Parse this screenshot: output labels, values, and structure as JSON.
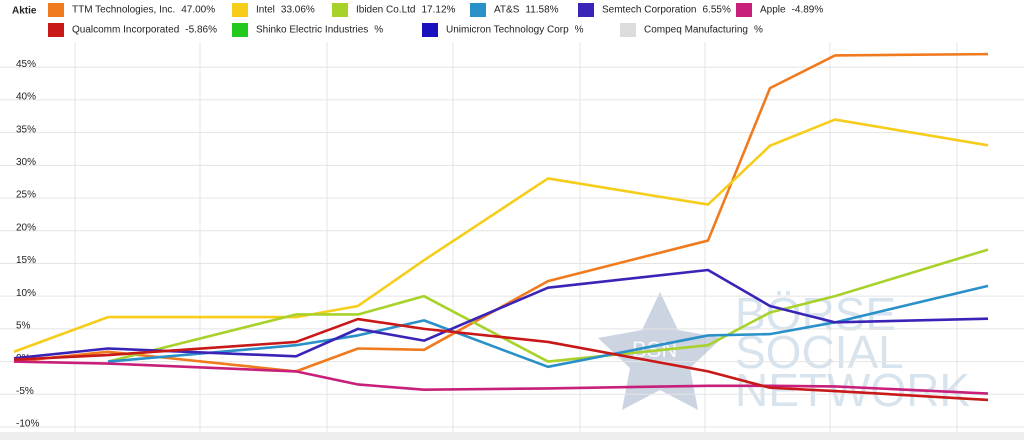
{
  "chart_data": {
    "type": "line",
    "legend_title": "Aktie",
    "watermark": {
      "badge": "BSN",
      "lines": [
        "BÖRSE",
        "SOCIAL",
        "NETWORK"
      ]
    },
    "categories": [
      null,
      null,
      null,
      null,
      null,
      null,
      null,
      null,
      null,
      null
    ],
    "ylim": [
      -10,
      50
    ],
    "yticks": [
      {
        "value": -10,
        "label": "-10%"
      },
      {
        "value": -5,
        "label": "-5%"
      },
      {
        "value": 0,
        "label": "0%"
      },
      {
        "value": 5,
        "label": "5%"
      },
      {
        "value": 10,
        "label": "10%"
      },
      {
        "value": 15,
        "label": "15%"
      },
      {
        "value": 20,
        "label": "20%"
      },
      {
        "value": 25,
        "label": "25%"
      },
      {
        "value": 30,
        "label": "30%"
      },
      {
        "value": 35,
        "label": "35%"
      },
      {
        "value": 40,
        "label": "40%"
      },
      {
        "value": 45,
        "label": "45%"
      }
    ],
    "grid": true,
    "series": [
      {
        "name": "TTM Technologies, Inc.",
        "legend_label": "47.00%",
        "color": "#f07a1e",
        "values": [
          0,
          1.5,
          -1.5,
          2,
          1.8,
          12.3,
          18.5,
          41.8,
          46.8,
          47.0
        ]
      },
      {
        "name": "Intel",
        "legend_label": "33.06%",
        "color": "#f6cd1a",
        "values": [
          1.5,
          6.8,
          6.8,
          8.5,
          15.5,
          28,
          24,
          33,
          37,
          33.06
        ]
      },
      {
        "name": "Ibiden Co.Ltd",
        "legend_label": "17.12%",
        "color": "#a8d22a",
        "values": [
          null,
          0,
          7.2,
          7.2,
          10,
          0,
          2.5,
          7.5,
          10,
          17.12
        ]
      },
      {
        "name": "AT&S",
        "legend_label": "11.58%",
        "color": "#2a90c8",
        "values": [
          null,
          0,
          2.5,
          4,
          6.3,
          -0.8,
          4,
          4.2,
          6,
          11.58
        ]
      },
      {
        "name": "Semtech Corporation",
        "legend_label": "6.55%",
        "color": "#3a24b8",
        "values": [
          0.5,
          2,
          0.8,
          5,
          3.2,
          11.3,
          14,
          8.5,
          6,
          6.55
        ]
      },
      {
        "name": "Apple",
        "legend_label": "-4.89%",
        "color": "#c8207a",
        "values": [
          0,
          -0.3,
          -1.5,
          -3.5,
          -4.3,
          -4.1,
          -3.7,
          -3.7,
          -3.8,
          -4.89
        ]
      },
      {
        "name": "Qualcomm Incorporated",
        "legend_label": "-5.86%",
        "color": "#c81818",
        "values": [
          0.3,
          1,
          3,
          6.5,
          5,
          3,
          -1.5,
          -4,
          -4.5,
          -5.86
        ]
      },
      {
        "name": "Shinko Electric Industries",
        "legend_label": "%",
        "color": "#22c81e",
        "values": [
          null,
          null,
          null,
          null,
          null,
          null,
          null,
          null,
          null,
          null
        ]
      },
      {
        "name": "Unimicron Technology Corp",
        "legend_label": "%",
        "color": "#1a10c0",
        "values": [
          null,
          null,
          null,
          null,
          null,
          null,
          null,
          null,
          null,
          null
        ]
      },
      {
        "name": "Compeq Manufacturing",
        "legend_label": "%",
        "color": "#dcdcdc",
        "values": [
          null,
          null,
          null,
          null,
          null,
          null,
          null,
          null,
          null,
          null
        ]
      }
    ]
  }
}
